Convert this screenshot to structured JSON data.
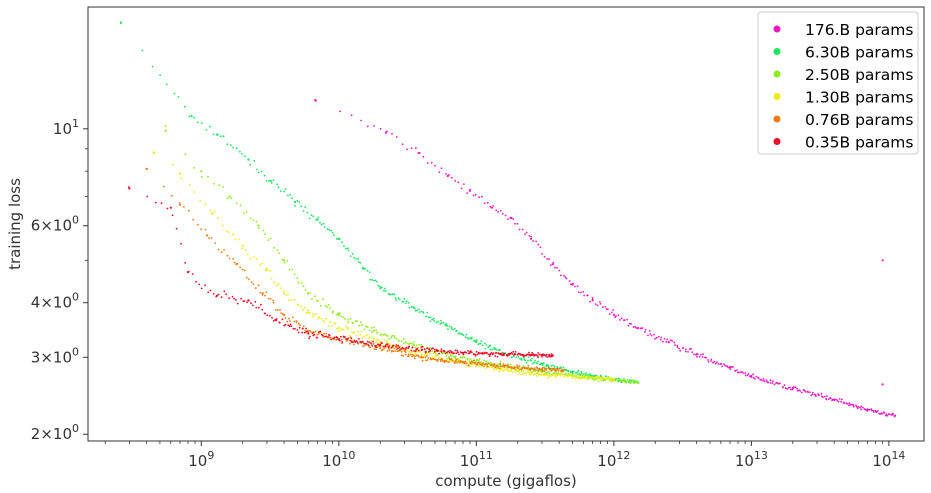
{
  "chart_data": {
    "type": "scatter",
    "xlabel": "compute (gigaflos)",
    "ylabel": "training loss",
    "xscale": "log",
    "yscale": "log",
    "xlim": [
      150000000,
      180000000000000
    ],
    "ylim": [
      1.93,
      19.0
    ],
    "grid": false,
    "legend_position": "top-right",
    "x_ticks": [
      {
        "value": 1000000000,
        "base": "10",
        "exp": "9"
      },
      {
        "value": 10000000000,
        "base": "10",
        "exp": "10"
      },
      {
        "value": 100000000000,
        "base": "10",
        "exp": "11"
      },
      {
        "value": 1000000000000,
        "base": "10",
        "exp": "12"
      },
      {
        "value": 10000000000000,
        "base": "10",
        "exp": "13"
      },
      {
        "value": 100000000000000,
        "base": "10",
        "exp": "14"
      }
    ],
    "y_ticks": [
      {
        "value": 2,
        "mant": "2",
        "base": "10",
        "exp": "0"
      },
      {
        "value": 3,
        "mant": "3",
        "base": "10",
        "exp": "0"
      },
      {
        "value": 4,
        "mant": "4",
        "base": "10",
        "exp": "0"
      },
      {
        "value": 6,
        "mant": "6",
        "base": "10",
        "exp": "0"
      },
      {
        "value": 10,
        "mant": "",
        "base": "10",
        "exp": "1"
      }
    ],
    "series": [
      {
        "name": "176.B params",
        "color": "#ee16c6",
        "points": [
          [
            6800000000.0,
            11.6
          ],
          [
            22000000000.0,
            9.8
          ],
          [
            38000000000.0,
            8.8
          ],
          [
            62000000000.0,
            7.8
          ],
          [
            90000000000.0,
            7.25
          ],
          [
            130000000000.0,
            6.6
          ],
          [
            180000000000.0,
            6.25
          ],
          [
            250000000000.0,
            5.6
          ],
          [
            360000000000.0,
            4.9
          ],
          [
            500000000000.0,
            4.4
          ],
          [
            700000000000.0,
            4.05
          ],
          [
            1000000000000.0,
            3.75
          ],
          [
            1500000000000.0,
            3.5
          ],
          [
            2500000000000.0,
            3.25
          ],
          [
            4000000000000.0,
            3.05
          ],
          [
            7000000000000.0,
            2.85
          ],
          [
            10000000000000.0,
            2.72
          ],
          [
            20000000000000.0,
            2.55
          ],
          [
            40000000000000.0,
            2.4
          ],
          [
            70000000000000.0,
            2.28
          ],
          [
            110000000000000.0,
            2.2
          ]
        ],
        "outliers": [
          [
            90000000000000.0,
            5.0
          ],
          [
            90000000000000.0,
            2.6
          ]
        ]
      },
      {
        "name": "6.30B params",
        "color": "#18e660",
        "points": [
          [
            260000000.0,
            17.5
          ],
          [
            850000000.0,
            10.7
          ],
          [
            1300000000.0,
            9.7
          ],
          [
            2200000000.0,
            8.5
          ],
          [
            3200000000.0,
            7.6
          ],
          [
            4800000000.0,
            6.8
          ],
          [
            7000000000.0,
            6.2
          ],
          [
            10000000000.0,
            5.6
          ],
          [
            15000000000.0,
            4.8
          ],
          [
            20000000000.0,
            4.35
          ],
          [
            35000000000.0,
            3.9
          ],
          [
            60000000000.0,
            3.55
          ],
          [
            100000000000.0,
            3.25
          ],
          [
            170000000000.0,
            3.05
          ],
          [
            300000000000.0,
            2.9
          ],
          [
            500000000000.0,
            2.78
          ],
          [
            800000000000.0,
            2.7
          ],
          [
            1200000000000.0,
            2.65
          ],
          [
            1500000000000.0,
            2.63
          ]
        ],
        "outliers": []
      },
      {
        "name": "2.50B params",
        "color": "#8ced1a",
        "points": [
          [
            550000000.0,
            9.9
          ],
          [
            1000000000.0,
            8.0
          ],
          [
            1600000000.0,
            7.0
          ],
          [
            2600000000.0,
            6.0
          ],
          [
            4000000000.0,
            5.0
          ],
          [
            6000000000.0,
            4.2
          ],
          [
            10000000000.0,
            3.75
          ],
          [
            18000000000.0,
            3.45
          ],
          [
            35000000000.0,
            3.2
          ],
          [
            70000000000.0,
            3.0
          ],
          [
            150000000000.0,
            2.88
          ],
          [
            300000000000.0,
            2.78
          ],
          [
            600000000000.0,
            2.7
          ],
          [
            1000000000000.0,
            2.66
          ],
          [
            1500000000000.0,
            2.63
          ]
        ],
        "outliers": []
      },
      {
        "name": "1.30B params",
        "color": "#eeee14",
        "points": [
          [
            450000000.0,
            8.8
          ],
          [
            700000000.0,
            7.9
          ],
          [
            1200000000.0,
            6.4
          ],
          [
            2000000000.0,
            5.4
          ],
          [
            3000000000.0,
            4.75
          ],
          [
            4000000000.0,
            4.2
          ],
          [
            6000000000.0,
            3.8
          ],
          [
            10000000000.0,
            3.5
          ],
          [
            20000000000.0,
            3.25
          ],
          [
            40000000000.0,
            3.05
          ],
          [
            80000000000.0,
            2.92
          ],
          [
            150000000000.0,
            2.82
          ],
          [
            300000000000.0,
            2.74
          ],
          [
            600000000000.0,
            2.7
          ],
          [
            1000000000000.0,
            2.68
          ]
        ],
        "outliers": []
      },
      {
        "name": "0.76B params",
        "color": "#f07a0c",
        "points": [
          [
            400000000.0,
            8.1
          ],
          [
            700000000.0,
            6.7
          ],
          [
            1100000000.0,
            5.7
          ],
          [
            1800000000.0,
            4.9
          ],
          [
            2800000000.0,
            4.2
          ],
          [
            4000000000.0,
            3.75
          ],
          [
            6000000000.0,
            3.45
          ],
          [
            10000000000.0,
            3.3
          ],
          [
            20000000000.0,
            3.15
          ],
          [
            40000000000.0,
            3.0
          ],
          [
            80000000000.0,
            2.92
          ],
          [
            160000000000.0,
            2.86
          ],
          [
            300000000000.0,
            2.82
          ],
          [
            430000000000.0,
            2.8
          ]
        ],
        "outliers": []
      },
      {
        "name": "0.35B params",
        "color": "#ee0a28",
        "points": [
          [
            300000000.0,
            7.3
          ],
          [
            600000000.0,
            6.6
          ],
          [
            800000000.0,
            4.7
          ],
          [
            1300000000.0,
            4.15
          ],
          [
            2200000000.0,
            4.05
          ],
          [
            3500000000.0,
            3.65
          ],
          [
            6000000000.0,
            3.4
          ],
          [
            10000000000.0,
            3.3
          ],
          [
            20000000000.0,
            3.2
          ],
          [
            40000000000.0,
            3.12
          ],
          [
            80000000000.0,
            3.07
          ],
          [
            150000000000.0,
            3.05
          ],
          [
            250000000000.0,
            3.04
          ],
          [
            360000000000.0,
            3.03
          ]
        ],
        "outliers": []
      }
    ]
  }
}
